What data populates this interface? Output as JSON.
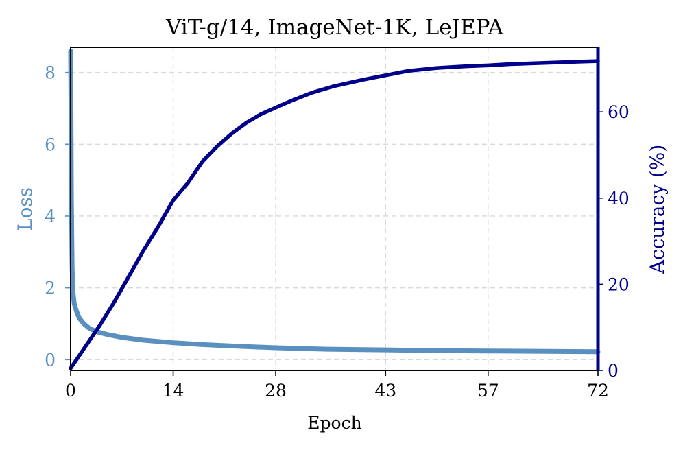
{
  "chart_data": {
    "type": "line",
    "title": "ViT-g/14, ImageNet-1K, LeJEPA",
    "xlabel": "Epoch",
    "xlim": [
      0,
      72
    ],
    "xticks": [
      0,
      14,
      28,
      43,
      57,
      72
    ],
    "grid": true,
    "colors": {
      "loss": "#5a90c0",
      "accuracy": "#00008b"
    },
    "y_left": {
      "label": "Loss",
      "lim": [
        -0.3,
        8.7
      ],
      "ticks": [
        0,
        2,
        4,
        6,
        8
      ]
    },
    "y_right": {
      "label": "Accuracy (%)",
      "lim": [
        0,
        75
      ],
      "ticks": [
        0,
        20,
        40,
        60
      ]
    },
    "series": [
      {
        "axis": "left",
        "x": [
          0,
          0.05,
          0.1,
          0.2,
          0.3,
          0.5,
          0.8,
          1.2,
          1.8,
          2.5,
          3.5,
          5,
          7,
          10,
          14,
          18,
          22,
          28,
          35,
          43,
          50,
          57,
          65,
          72
        ],
        "y": [
          8.6,
          7.0,
          4.5,
          2.6,
          1.9,
          1.55,
          1.35,
          1.15,
          1.0,
          0.88,
          0.78,
          0.7,
          0.62,
          0.54,
          0.47,
          0.42,
          0.38,
          0.33,
          0.29,
          0.27,
          0.25,
          0.24,
          0.23,
          0.22
        ]
      },
      {
        "axis": "right",
        "x": [
          0,
          2,
          4,
          6,
          8,
          10,
          12,
          14,
          16,
          18,
          20,
          22,
          24,
          26,
          28,
          30,
          33,
          36,
          40,
          43,
          46,
          50,
          54,
          57,
          60,
          65,
          70,
          72
        ],
        "y": [
          0.5,
          5.5,
          10.5,
          16,
          22,
          28,
          33.5,
          39.5,
          43.5,
          48.5,
          52,
          55,
          57.5,
          59.5,
          61,
          62.5,
          64.5,
          66,
          67.5,
          68.5,
          69.5,
          70.2,
          70.6,
          70.8,
          71.1,
          71.4,
          71.7,
          71.8
        ]
      }
    ]
  }
}
